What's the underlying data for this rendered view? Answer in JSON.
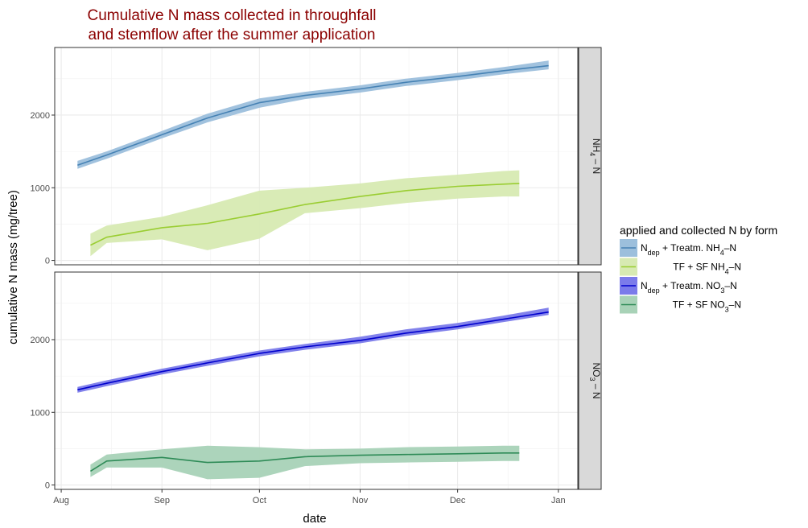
{
  "chart_data": {
    "type": "line",
    "title": [
      "Cumulative N mass collected in throughfall",
      "and stemflow after the summer application"
    ],
    "xlabel": "date",
    "ylabel": "cumulative N mass (mg/tree)",
    "x_ticks": [
      "Aug",
      "Sep",
      "Oct",
      "Nov",
      "Dec",
      "Jan"
    ],
    "x_tick_dates": [
      "08-01",
      "09-01",
      "10-01",
      "11-01",
      "12-01",
      "01-01"
    ],
    "xlim": [
      "07-30",
      "01-07"
    ],
    "grid": true,
    "legend": {
      "title": "applied and collected N by form",
      "placement": "right",
      "entries": [
        {
          "key": "dep_nh4",
          "label": "N_dep + Treatm. NH4–N"
        },
        {
          "key": "tf_nh4",
          "label": "TF + SF NH4–N"
        },
        {
          "key": "dep_no3",
          "label": "N_dep + Treatm. NO3–N"
        },
        {
          "key": "tf_no3",
          "label": "TF + SF NO3–N"
        }
      ]
    },
    "colors": {
      "dep_nh4": {
        "line": "#4682b4",
        "fill": "#9cbfdc"
      },
      "tf_nh4": {
        "line": "#9acd32",
        "fill": "#d7eab2"
      },
      "dep_no3": {
        "line": "#0000cd",
        "fill": "#7b7bea"
      },
      "tf_no3": {
        "line": "#2e8b57",
        "fill": "#a8d2b7"
      }
    },
    "panels": [
      {
        "strip": "NH4 – N",
        "ylim": [
          -60,
          2930
        ],
        "y_ticks": [
          0,
          1000,
          2000
        ],
        "series": [
          {
            "key": "dep_nh4",
            "x": [
              "08-06",
              "08-15",
              "09-01",
              "09-15",
              "10-01",
              "10-15",
              "11-01",
              "11-15",
              "12-01",
              "12-15",
              "12-29"
            ],
            "y": [
              1310,
              1450,
              1730,
              1960,
              2170,
              2270,
              2360,
              2450,
              2530,
              2610,
              2680
            ],
            "lower": [
              1260,
              1400,
              1680,
              1900,
              2100,
              2220,
              2310,
              2400,
              2480,
              2560,
              2630
            ],
            "upper": [
              1370,
              1500,
              1780,
              2020,
              2230,
              2320,
              2410,
              2500,
              2580,
              2660,
              2750
            ]
          },
          {
            "key": "tf_nh4",
            "x": [
              "08-10",
              "08-15",
              "09-01",
              "09-15",
              "10-01",
              "10-15",
              "11-01",
              "11-15",
              "12-01",
              "12-15",
              "12-20"
            ],
            "y": [
              210,
              320,
              450,
              510,
              640,
              770,
              880,
              960,
              1020,
              1050,
              1060
            ],
            "lower": [
              60,
              240,
              290,
              140,
              300,
              650,
              720,
              790,
              850,
              880,
              880
            ],
            "upper": [
              370,
              480,
              600,
              760,
              960,
              1000,
              1060,
              1130,
              1180,
              1230,
              1240
            ]
          }
        ]
      },
      {
        "strip": "NO3 – N",
        "ylim": [
          -60,
          2930
        ],
        "y_ticks": [
          0,
          1000,
          2000
        ],
        "series": [
          {
            "key": "dep_no3",
            "x": [
              "08-06",
              "08-15",
              "09-01",
              "09-15",
              "10-01",
              "10-15",
              "11-01",
              "11-15",
              "12-01",
              "12-15",
              "12-29"
            ],
            "y": [
              1310,
              1400,
              1560,
              1680,
              1810,
              1900,
              1990,
              2090,
              2180,
              2280,
              2380
            ],
            "lower": [
              1270,
              1360,
              1520,
              1640,
              1770,
              1860,
              1950,
              2050,
              2140,
              2240,
              2340
            ],
            "upper": [
              1350,
              1440,
              1600,
              1720,
              1850,
              1940,
              2040,
              2140,
              2230,
              2330,
              2440
            ]
          },
          {
            "key": "tf_no3",
            "x": [
              "08-10",
              "08-15",
              "09-01",
              "09-15",
              "10-01",
              "10-15",
              "11-01",
              "11-15",
              "12-01",
              "12-15",
              "12-20"
            ],
            "y": [
              190,
              330,
              380,
              310,
              330,
              390,
              410,
              420,
              430,
              440,
              440
            ],
            "lower": [
              110,
              240,
              240,
              80,
              100,
              260,
              300,
              310,
              320,
              330,
              330
            ],
            "upper": [
              280,
              420,
              490,
              540,
              520,
              490,
              500,
              520,
              530,
              540,
              540
            ]
          }
        ]
      }
    ]
  }
}
